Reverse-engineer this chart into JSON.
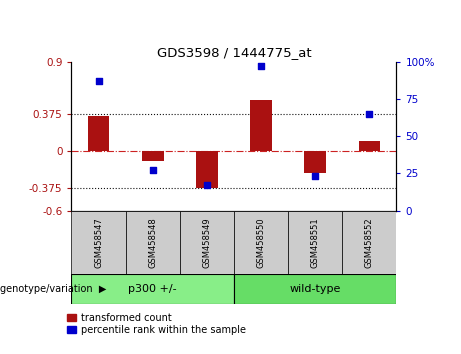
{
  "title": "GDS3598 / 1444775_at",
  "samples": [
    "GSM458547",
    "GSM458548",
    "GSM458549",
    "GSM458550",
    "GSM458551",
    "GSM458552"
  ],
  "transformed_count": [
    0.355,
    -0.1,
    -0.37,
    0.52,
    -0.22,
    0.1
  ],
  "percentile_rank": [
    87,
    27,
    17,
    97,
    23,
    65
  ],
  "ylim_left": [
    -0.6,
    0.9
  ],
  "yticks_left": [
    -0.6,
    -0.375,
    0,
    0.375,
    0.9
  ],
  "ylim_right": [
    0,
    100
  ],
  "yticks_right": [
    0,
    25,
    50,
    75,
    100
  ],
  "yticklabels_right": [
    "0",
    "25",
    "50",
    "75",
    "100%"
  ],
  "bar_color": "#aa1111",
  "scatter_color": "#0000cc",
  "hline_color": "#cc2222",
  "dotted_color": "#111111",
  "groups": [
    {
      "label": "p300 +/-",
      "indices": [
        0,
        1,
        2
      ],
      "color": "#88ee88"
    },
    {
      "label": "wild-type",
      "indices": [
        3,
        4,
        5
      ],
      "color": "#66dd66"
    }
  ],
  "legend_bar_label": "transformed count",
  "legend_scatter_label": "percentile rank within the sample",
  "xlabel_label": "genotype/variation",
  "fig_width": 4.61,
  "fig_height": 3.54,
  "dpi": 100
}
